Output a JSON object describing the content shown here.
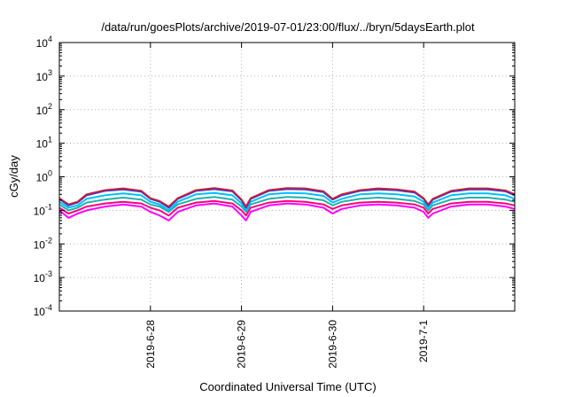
{
  "chart_data": {
    "type": "line",
    "title": "/data/run/goesPlots/archive/2019-07-01/23:00/flux/../bryn/5daysEarth.plot",
    "xlabel": "Coordinated Universal Time (UTC)",
    "ylabel": "cGy/day",
    "yscale": "log",
    "ylim": [
      0.0001,
      10000
    ],
    "xlim": [
      0,
      5
    ],
    "y_ticks": [
      {
        "base": "10",
        "exp": "-4",
        "value": 0.0001
      },
      {
        "base": "10",
        "exp": "-3",
        "value": 0.001
      },
      {
        "base": "10",
        "exp": "-2",
        "value": 0.01
      },
      {
        "base": "10",
        "exp": "-1",
        "value": 0.1
      },
      {
        "base": "10",
        "exp": "0",
        "value": 1
      },
      {
        "base": "10",
        "exp": "1",
        "value": 10
      },
      {
        "base": "10",
        "exp": "2",
        "value": 100
      },
      {
        "base": "10",
        "exp": "3",
        "value": 1000
      },
      {
        "base": "10",
        "exp": "4",
        "value": 10000
      }
    ],
    "x_ticks": [
      {
        "label": "2019-6-28",
        "value": 1
      },
      {
        "label": "2019-6-29",
        "value": 2
      },
      {
        "label": "2019-6-30",
        "value": 3
      },
      {
        "label": "2019-7-1",
        "value": 4
      }
    ],
    "grid": true,
    "legend": "none",
    "series": [
      {
        "color": "#ff00ff",
        "x": [
          0,
          0.1,
          0.2,
          0.3,
          0.5,
          0.7,
          0.9,
          1.0,
          1.1,
          1.2,
          1.3,
          1.5,
          1.7,
          1.9,
          2.0,
          2.05,
          2.1,
          2.3,
          2.5,
          2.7,
          2.9,
          3.0,
          3.1,
          3.3,
          3.5,
          3.7,
          3.9,
          4.0,
          4.05,
          4.1,
          4.3,
          4.5,
          4.7,
          4.9,
          5.0
        ],
        "y": [
          0.1,
          0.06,
          0.08,
          0.1,
          0.13,
          0.15,
          0.13,
          0.09,
          0.07,
          0.05,
          0.09,
          0.14,
          0.16,
          0.13,
          0.07,
          0.05,
          0.09,
          0.14,
          0.16,
          0.15,
          0.12,
          0.08,
          0.11,
          0.14,
          0.15,
          0.14,
          0.12,
          0.09,
          0.06,
          0.08,
          0.13,
          0.15,
          0.15,
          0.13,
          0.11
        ]
      },
      {
        "color": "#ff0080",
        "x": [
          0,
          0.1,
          0.2,
          0.3,
          0.5,
          0.7,
          0.9,
          1.0,
          1.1,
          1.2,
          1.3,
          1.5,
          1.7,
          1.9,
          2.0,
          2.05,
          2.1,
          2.3,
          2.5,
          2.7,
          2.9,
          3.0,
          3.1,
          3.3,
          3.5,
          3.7,
          3.9,
          4.0,
          4.05,
          4.1,
          4.3,
          4.5,
          4.7,
          4.9,
          5.0
        ],
        "y": [
          0.12,
          0.08,
          0.1,
          0.13,
          0.16,
          0.18,
          0.16,
          0.12,
          0.1,
          0.07,
          0.12,
          0.17,
          0.19,
          0.16,
          0.1,
          0.07,
          0.12,
          0.17,
          0.19,
          0.18,
          0.15,
          0.11,
          0.14,
          0.17,
          0.18,
          0.17,
          0.15,
          0.12,
          0.08,
          0.11,
          0.16,
          0.18,
          0.18,
          0.16,
          0.14
        ]
      },
      {
        "color": "#20b2aa",
        "x": [
          0,
          0.1,
          0.2,
          0.3,
          0.5,
          0.7,
          0.9,
          1.0,
          1.1,
          1.2,
          1.3,
          1.5,
          1.7,
          1.9,
          2.0,
          2.05,
          2.1,
          2.3,
          2.5,
          2.7,
          2.9,
          3.0,
          3.1,
          3.3,
          3.5,
          3.7,
          3.9,
          4.0,
          4.05,
          4.1,
          4.3,
          4.5,
          4.7,
          4.9,
          5.0
        ],
        "y": [
          0.15,
          0.1,
          0.12,
          0.17,
          0.21,
          0.24,
          0.21,
          0.15,
          0.13,
          0.09,
          0.15,
          0.22,
          0.25,
          0.21,
          0.13,
          0.09,
          0.15,
          0.22,
          0.25,
          0.24,
          0.2,
          0.14,
          0.18,
          0.22,
          0.24,
          0.22,
          0.19,
          0.15,
          0.1,
          0.14,
          0.21,
          0.24,
          0.24,
          0.21,
          0.18
        ]
      },
      {
        "color": "#00bfff",
        "x": [
          0,
          0.1,
          0.2,
          0.3,
          0.5,
          0.7,
          0.9,
          1.0,
          1.1,
          1.2,
          1.3,
          1.5,
          1.7,
          1.9,
          2.0,
          2.05,
          2.1,
          2.3,
          2.5,
          2.7,
          2.9,
          3.0,
          3.1,
          3.3,
          3.5,
          3.7,
          3.9,
          4.0,
          4.05,
          4.1,
          4.3,
          4.5,
          4.7,
          4.9,
          5.0
        ],
        "y": [
          0.18,
          0.12,
          0.14,
          0.22,
          0.28,
          0.32,
          0.28,
          0.18,
          0.15,
          0.1,
          0.18,
          0.3,
          0.33,
          0.28,
          0.16,
          0.1,
          0.18,
          0.3,
          0.33,
          0.32,
          0.27,
          0.17,
          0.22,
          0.3,
          0.32,
          0.3,
          0.26,
          0.18,
          0.12,
          0.17,
          0.28,
          0.32,
          0.32,
          0.28,
          0.22
        ]
      },
      {
        "color": "#1e3cff",
        "x": [
          0,
          0.1,
          0.2,
          0.3,
          0.5,
          0.7,
          0.9,
          1.0,
          1.1,
          1.2,
          1.3,
          1.5,
          1.7,
          1.9,
          2.0,
          2.05,
          2.1,
          2.3,
          2.5,
          2.7,
          2.9,
          3.0,
          3.1,
          3.3,
          3.5,
          3.7,
          3.9,
          4.0,
          4.05,
          4.1,
          4.3,
          4.5,
          4.7,
          4.9,
          5.0
        ],
        "y": [
          0.22,
          0.14,
          0.17,
          0.28,
          0.38,
          0.42,
          0.36,
          0.22,
          0.18,
          0.12,
          0.22,
          0.38,
          0.43,
          0.37,
          0.2,
          0.12,
          0.22,
          0.38,
          0.43,
          0.42,
          0.35,
          0.21,
          0.28,
          0.38,
          0.42,
          0.4,
          0.34,
          0.22,
          0.14,
          0.21,
          0.36,
          0.42,
          0.42,
          0.37,
          0.28
        ]
      },
      {
        "color": "#c41e3a",
        "x": [
          0,
          0.1,
          0.2,
          0.3,
          0.5,
          0.7,
          0.9,
          1.0,
          1.1,
          1.2,
          1.3,
          1.5,
          1.7,
          1.9,
          2.0,
          2.05,
          2.1,
          2.3,
          2.5,
          2.7,
          2.9,
          3.0,
          3.1,
          3.3,
          3.5,
          3.7,
          3.9,
          4.0,
          4.05,
          4.1,
          4.3,
          4.5,
          4.7,
          4.9,
          5.0
        ],
        "y": [
          0.23,
          0.15,
          0.18,
          0.3,
          0.4,
          0.45,
          0.38,
          0.23,
          0.19,
          0.13,
          0.23,
          0.4,
          0.46,
          0.39,
          0.21,
          0.13,
          0.23,
          0.4,
          0.46,
          0.45,
          0.37,
          0.22,
          0.3,
          0.4,
          0.45,
          0.42,
          0.36,
          0.23,
          0.15,
          0.22,
          0.38,
          0.45,
          0.45,
          0.39,
          0.3
        ]
      }
    ]
  }
}
